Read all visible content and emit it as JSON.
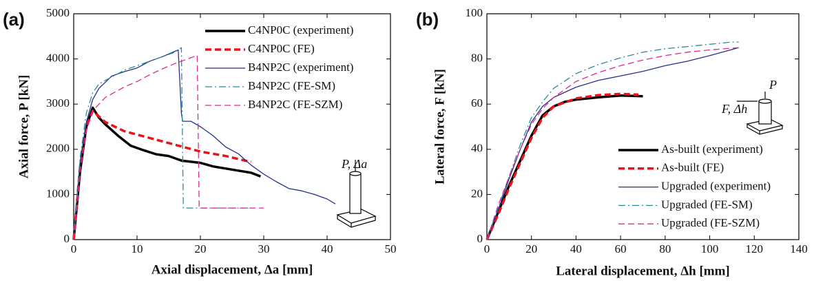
{
  "chart_data": [
    {
      "type": "line",
      "panel_label": "(a)",
      "xlabel": "Axial displacement, Δa [mm]",
      "ylabel": "Axial force, P [kN]",
      "xlim": [
        0,
        50
      ],
      "xticks": [
        0,
        10,
        20,
        30,
        40,
        50
      ],
      "ylim": [
        0,
        5000
      ],
      "yticks": [
        0,
        1000,
        2000,
        3000,
        4000,
        5000
      ],
      "legend": "upper right",
      "annotations": [
        "P, Δa"
      ],
      "series": [
        {
          "name": "C4NP0C (experiment)",
          "color": "#000000",
          "line_style": "solid",
          "line_width": 3.5,
          "x": [
            0,
            1,
            2,
            3,
            4,
            5,
            7,
            9,
            11,
            13,
            15,
            17,
            20,
            22,
            25,
            28,
            29.5
          ],
          "values": [
            0,
            1500,
            2500,
            2920,
            2700,
            2550,
            2300,
            2080,
            1980,
            1890,
            1850,
            1750,
            1700,
            1620,
            1550,
            1480,
            1400
          ]
        },
        {
          "name": "C4NP0C (FE)",
          "color": "#e8141b",
          "line_style": "dashed",
          "line_width": 3.5,
          "x": [
            0,
            1,
            2,
            3,
            5,
            8,
            12,
            16,
            20,
            24,
            27,
            28
          ],
          "values": [
            0,
            1600,
            2500,
            2850,
            2600,
            2400,
            2250,
            2100,
            1950,
            1850,
            1750,
            1720
          ]
        },
        {
          "name": "B4NP2C (experiment)",
          "color": "#262f8c",
          "line_style": "solid",
          "line_width": 1.3,
          "x": [
            0,
            1,
            2,
            3,
            4,
            6,
            8,
            10,
            12,
            14,
            16.5,
            17,
            17.2,
            18.5,
            20,
            22,
            24,
            26,
            28,
            30,
            32,
            34,
            36,
            38,
            40,
            41.3
          ],
          "values": [
            0,
            1700,
            2600,
            3100,
            3350,
            3620,
            3720,
            3800,
            3950,
            4050,
            4200,
            2800,
            2620,
            2620,
            2500,
            2300,
            2050,
            1900,
            1650,
            1450,
            1280,
            1130,
            1080,
            1000,
            900,
            790
          ]
        },
        {
          "name": "B4NP2C (FE-SM)",
          "color": "#2b8a9a",
          "line_style": "dashdot",
          "line_width": 1.3,
          "x": [
            0,
            1,
            2,
            3,
            4,
            6,
            8,
            10,
            12,
            14,
            16,
            17,
            17.3,
            20,
            25,
            28
          ],
          "values": [
            0,
            1800,
            2800,
            3250,
            3450,
            3600,
            3750,
            3850,
            3950,
            4050,
            4150,
            4250,
            700,
            700,
            700,
            700
          ]
        },
        {
          "name": "B4NP2C (FE-SZM)",
          "color": "#e0278f",
          "line_style": "dashed",
          "line_width": 1.3,
          "x": [
            0,
            1,
            2,
            3,
            5,
            8,
            10,
            12,
            14,
            16,
            18,
            19.5,
            19.8,
            22,
            26,
            30
          ],
          "values": [
            0,
            1500,
            2400,
            2850,
            3150,
            3380,
            3500,
            3650,
            3780,
            3900,
            4000,
            4080,
            700,
            700,
            700,
            700
          ]
        }
      ]
    },
    {
      "type": "line",
      "panel_label": "(b)",
      "xlabel": "Lateral displacement, Δh [mm]",
      "ylabel": "Lateral force, F [kN]",
      "xlim": [
        0,
        140
      ],
      "xticks": [
        0,
        20,
        40,
        60,
        80,
        100,
        120,
        140
      ],
      "ylim": [
        0,
        100
      ],
      "yticks": [
        0,
        20,
        40,
        60,
        80,
        100
      ],
      "legend": "lower right",
      "annotations": [
        "F, Δh",
        "P"
      ],
      "series": [
        {
          "name": "As-built (experiment)",
          "color": "#000000",
          "line_style": "solid",
          "line_width": 3.5,
          "x": [
            0,
            5,
            10,
            15,
            20,
            25,
            30,
            35,
            40,
            50,
            60,
            70
          ],
          "values": [
            0,
            12,
            24,
            35,
            46,
            55,
            59,
            61,
            62,
            63,
            63.8,
            63.5
          ]
        },
        {
          "name": "As-built (FE)",
          "color": "#e8141b",
          "line_style": "dashed",
          "line_width": 3.5,
          "x": [
            0,
            5,
            10,
            15,
            20,
            25,
            30,
            40,
            50,
            60,
            68
          ],
          "values": [
            0,
            11,
            23,
            34,
            45,
            54,
            59,
            62.5,
            64,
            64.5,
            64.2
          ]
        },
        {
          "name": "Upgraded (experiment)",
          "color": "#262f8c",
          "line_style": "solid",
          "line_width": 1.3,
          "x": [
            0,
            5,
            10,
            15,
            20,
            25,
            30,
            40,
            50,
            60,
            70,
            80,
            90,
            100,
            113
          ],
          "values": [
            0,
            13,
            27,
            40,
            52,
            59,
            63,
            67.5,
            70.5,
            72.5,
            74.5,
            77,
            79,
            81.5,
            85
          ]
        },
        {
          "name": "Upgraded (FE-SM)",
          "color": "#2b8a9a",
          "line_style": "dashdot",
          "line_width": 1.3,
          "x": [
            0,
            5,
            10,
            15,
            20,
            25,
            30,
            40,
            50,
            60,
            70,
            80,
            90,
            100,
            110,
            113
          ],
          "values": [
            0,
            14,
            28,
            42,
            54,
            61,
            67,
            73.5,
            77.5,
            80.5,
            83,
            84.5,
            85.5,
            86.5,
            87.5,
            87.5
          ]
        },
        {
          "name": "Upgraded (FE-SZM)",
          "color": "#e0278f",
          "line_style": "dashed",
          "line_width": 1.3,
          "x": [
            0,
            5,
            10,
            15,
            20,
            25,
            30,
            40,
            50,
            60,
            70,
            80,
            90,
            100,
            113
          ],
          "values": [
            0,
            15,
            28,
            40,
            51,
            58,
            63,
            70,
            74,
            77,
            79.5,
            81.5,
            83,
            84,
            85
          ]
        }
      ]
    }
  ]
}
